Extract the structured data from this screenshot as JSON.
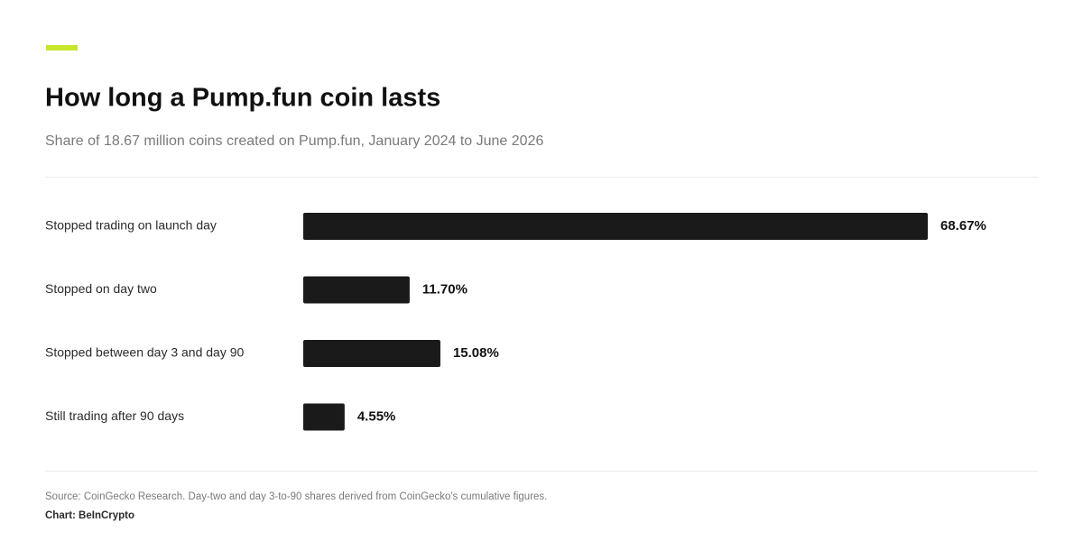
{
  "chart_data": {
    "type": "hbar",
    "title": "How long a Pump.fun coin lasts",
    "subtitle": "Share of 18.67 million coins created on Pump.fun, January 2024 to June 2026",
    "categories": [
      "Stopped trading on launch day",
      "Stopped on day two",
      "Stopped between day 3 and day 90",
      "Still trading after 90 days"
    ],
    "values": [
      68.67,
      11.7,
      15.08,
      4.55
    ],
    "value_labels": [
      "68.67%",
      "11.70%",
      "15.08%",
      "4.55%"
    ],
    "color": "#1a1a1a",
    "accent_color": "#c8e62c",
    "source": "Source: CoinGecko Research. Day-two and day 3-to-90 shares derived from CoinGecko's cumulative figures.",
    "credit": "Chart: BeInCrypto"
  }
}
